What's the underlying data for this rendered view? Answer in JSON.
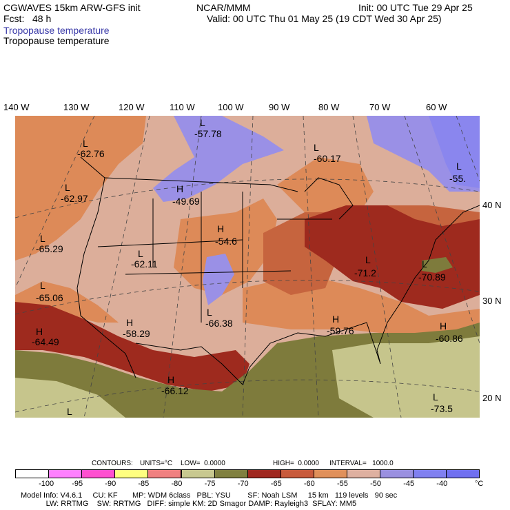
{
  "header": {
    "model": "CGWAVES 15km ARW-GFS init",
    "forecast": "Fcst:   48 h",
    "org": "NCAR/MMM",
    "init": "Init: 00 UTC Tue 29 Apr 25",
    "valid": "Valid: 00 UTC Thu 01 May 25 (19 CDT Wed 30 Apr 25)",
    "field_title": "Tropopause temperature",
    "field_title2": "Tropopause temperature"
  },
  "longitudes": [
    "140 W",
    "130 W",
    "120 W",
    "110 W",
    "100 W",
    "90 W",
    "80 W",
    "70 W",
    "60 W"
  ],
  "latitudes": [
    "40 N",
    "30 N",
    "20 N"
  ],
  "map_labels": [
    {
      "type": "L",
      "value": "-57.78"
    },
    {
      "type": "L",
      "value": "-62.76"
    },
    {
      "type": "L",
      "value": "-60.17"
    },
    {
      "type": "L",
      "value": "-55."
    },
    {
      "type": "L",
      "value": "-62.97"
    },
    {
      "type": "H",
      "value": "-49.69"
    },
    {
      "type": "H",
      "value": "-54.6"
    },
    {
      "type": "L",
      "value": "-65.29"
    },
    {
      "type": "L",
      "value": "-62.11"
    },
    {
      "type": "L",
      "value": "-71.2"
    },
    {
      "type": "L",
      "value": "-70.89"
    },
    {
      "type": "L",
      "value": "-65.06"
    },
    {
      "type": "L",
      "value": "-66.38"
    },
    {
      "type": "H",
      "value": "-64.49"
    },
    {
      "type": "H",
      "value": "-58.29"
    },
    {
      "type": "H",
      "value": "-59.76"
    },
    {
      "type": "H",
      "value": "-60.86"
    },
    {
      "type": "H",
      "value": "-66.12"
    },
    {
      "type": "L",
      "value": ""
    },
    {
      "type": "L",
      "value": "-73.5"
    }
  ],
  "contours": {
    "label": "CONTOURS:",
    "units": "UNITS=°C",
    "low": "LOW=  0.0000",
    "high": "HIGH=  0.0000",
    "interval": "INTERVAL=   1000.0"
  },
  "colorbar": {
    "colors": [
      "#ffffff",
      "#ff80ff",
      "#ff50d0",
      "#ffff80",
      "#f08080",
      "#c8c890",
      "#808040",
      "#a02820",
      "#c85a3c",
      "#e0905a",
      "#deb0a0",
      "#9a90e0",
      "#8080f0",
      "#7070f0"
    ],
    "labels": [
      "-100",
      "-95",
      "-90",
      "-85",
      "-80",
      "-75",
      "-70",
      "-65",
      "-60",
      "-55",
      "-50",
      "-45",
      "-40"
    ],
    "unit": "°C"
  },
  "footer": {
    "line1": "Model Info: V4.6.1     CU: KF       MP: WDM 6class   PBL: YSU        SF: Noah LSM     15 km   119 levels   90 sec",
    "line2": "            LW: RRTMG    SW: RRTMG   DIFF: simple KM: 2D Smagor DAMP: Rayleigh3  SFLAY: MM5"
  },
  "field_colors": {
    "lt_salmon": "#dcae9a",
    "salmon": "#dd8a58",
    "brick": "#c6643e",
    "dark_red": "#9e2a1e",
    "olive": "#7e7b3c",
    "khaki": "#c6c58c",
    "lavender": "#9a90e6",
    "periwinkle": "#8a86ee"
  }
}
